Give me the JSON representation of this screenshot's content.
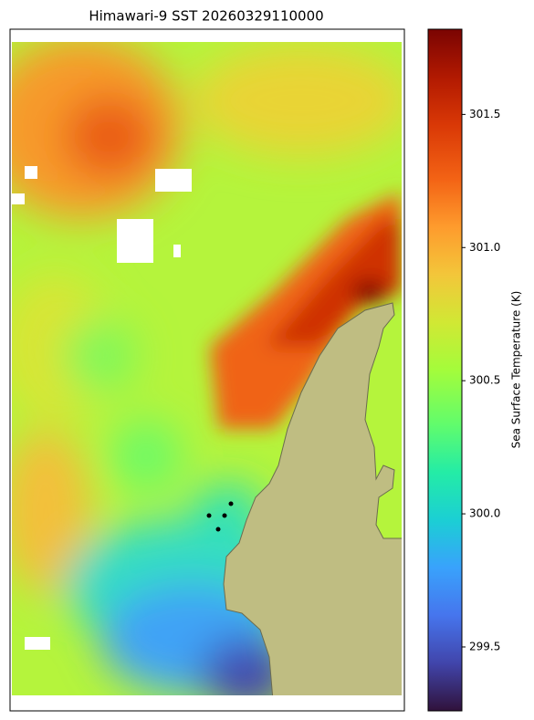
{
  "chart_data": {
    "type": "map",
    "title": "Himawari-9 SST 20260329110000",
    "colorbar": {
      "label": "Sea Surface Temperature (K)",
      "lim": [
        299.26,
        301.82
      ],
      "ticks": [
        299.5,
        {
          "value": 300,
          "label": "300.0"
        },
        300.5,
        {
          "value": 301,
          "label": "301.0"
        },
        301.5
      ]
    }
  }
}
